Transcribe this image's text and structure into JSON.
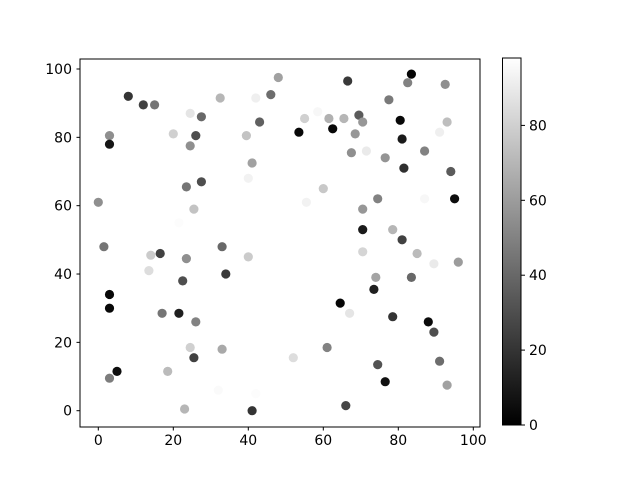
{
  "figure": {
    "background_color": "#ffffff",
    "spine_color": "#000000",
    "tick_color": "#000000"
  },
  "chart_data": {
    "type": "scatter",
    "title": "",
    "xlabel": "",
    "ylabel": "",
    "x_ticks": [
      0,
      20,
      40,
      60,
      80,
      100
    ],
    "y_ticks": [
      0,
      20,
      40,
      60,
      80,
      100
    ],
    "xlim": [
      -5,
      105
    ],
    "ylim": [
      -5,
      105
    ],
    "grid": false,
    "legend": "none",
    "marker": "circle",
    "colormap": "gray",
    "colorbar": {
      "position": "right",
      "ticks": [
        0,
        20,
        40,
        60,
        80
      ],
      "vmin": 0,
      "vmax": 98,
      "top_color": "#ffffff",
      "bottom_color": "#000000"
    },
    "points_format": [
      "x",
      "y",
      "color_value"
    ],
    "points": [
      [
        8,
        92,
        20
      ],
      [
        12,
        89.5,
        25
      ],
      [
        15,
        89.5,
        45
      ],
      [
        24.5,
        87,
        88
      ],
      [
        27.5,
        86,
        40
      ],
      [
        32.5,
        91.5,
        70
      ],
      [
        42,
        91.5,
        92
      ],
      [
        46,
        92.5,
        42
      ],
      [
        48,
        97.5,
        62
      ],
      [
        43,
        84.5,
        37
      ],
      [
        20,
        81,
        80
      ],
      [
        26,
        80.5,
        30
      ],
      [
        24.5,
        77.5,
        55
      ],
      [
        3,
        80.5,
        55
      ],
      [
        3,
        78,
        8
      ],
      [
        39.5,
        80.5,
        75
      ],
      [
        41,
        72.5,
        62
      ],
      [
        40,
        68,
        93
      ],
      [
        27.5,
        67,
        30
      ],
      [
        23.5,
        65.5,
        45
      ],
      [
        0,
        61,
        55
      ],
      [
        25.5,
        59,
        75
      ],
      [
        21.5,
        55,
        97
      ],
      [
        83.5,
        98.5,
        2
      ],
      [
        66.5,
        96.5,
        22
      ],
      [
        82.5,
        96,
        50
      ],
      [
        92.5,
        95.5,
        55
      ],
      [
        77.5,
        91,
        47
      ],
      [
        58.5,
        87.5,
        95
      ],
      [
        55,
        85.5,
        80
      ],
      [
        61.5,
        85.5,
        68
      ],
      [
        65.5,
        85.5,
        70
      ],
      [
        69.5,
        86.5,
        35
      ],
      [
        70.5,
        84.5,
        58
      ],
      [
        80.5,
        85,
        3
      ],
      [
        93,
        84.5,
        73
      ],
      [
        53.5,
        81.5,
        3
      ],
      [
        62.5,
        82.5,
        3
      ],
      [
        68.5,
        81,
        58
      ],
      [
        91,
        81.5,
        92
      ],
      [
        81,
        79.5,
        10
      ],
      [
        87,
        76,
        50
      ],
      [
        67.5,
        75.5,
        55
      ],
      [
        71.5,
        76,
        90
      ],
      [
        76.5,
        74,
        57
      ],
      [
        81.5,
        71,
        18
      ],
      [
        94,
        70,
        35
      ],
      [
        60,
        65,
        77
      ],
      [
        55.5,
        61,
        93
      ],
      [
        74.5,
        62,
        50
      ],
      [
        87,
        62,
        95
      ],
      [
        95,
        62,
        5
      ],
      [
        70.5,
        59,
        58
      ],
      [
        70.5,
        53,
        10
      ],
      [
        78.5,
        53,
        70
      ],
      [
        81,
        50,
        25
      ],
      [
        1.5,
        48,
        45
      ],
      [
        16.5,
        46,
        25
      ],
      [
        14,
        45.5,
        78
      ],
      [
        23.5,
        44.5,
        55
      ],
      [
        33,
        48,
        40
      ],
      [
        40,
        45,
        78
      ],
      [
        13.5,
        41,
        85
      ],
      [
        22.5,
        38,
        30
      ],
      [
        34,
        40,
        22
      ],
      [
        3,
        34,
        3
      ],
      [
        3,
        30,
        3
      ],
      [
        17,
        28.5,
        45
      ],
      [
        21.5,
        28.5,
        12
      ],
      [
        26,
        26,
        50
      ],
      [
        24.5,
        18.5,
        80
      ],
      [
        25.5,
        15.5,
        25
      ],
      [
        33,
        18,
        65
      ],
      [
        18.5,
        11.5,
        72
      ],
      [
        5,
        11.5,
        5
      ],
      [
        3,
        9.5,
        48
      ],
      [
        32,
        6,
        96
      ],
      [
        42,
        5,
        97
      ],
      [
        23,
        0.5,
        70
      ],
      [
        41,
        0,
        20
      ],
      [
        70.5,
        46.5,
        82
      ],
      [
        85,
        46,
        72
      ],
      [
        89.5,
        43,
        90
      ],
      [
        96,
        43.5,
        60
      ],
      [
        74,
        39,
        63
      ],
      [
        83.5,
        39,
        40
      ],
      [
        73.5,
        35.5,
        12
      ],
      [
        64.5,
        31.5,
        2
      ],
      [
        67,
        28.5,
        88
      ],
      [
        78.5,
        27.5,
        20
      ],
      [
        88,
        26,
        4
      ],
      [
        89.5,
        23,
        30
      ],
      [
        61,
        18.5,
        50
      ],
      [
        52,
        15.5,
        85
      ],
      [
        74.5,
        13.5,
        32
      ],
      [
        76.5,
        8.5,
        6
      ],
      [
        91,
        14.5,
        42
      ],
      [
        93,
        7.5,
        62
      ],
      [
        66,
        1.5,
        27
      ]
    ]
  }
}
